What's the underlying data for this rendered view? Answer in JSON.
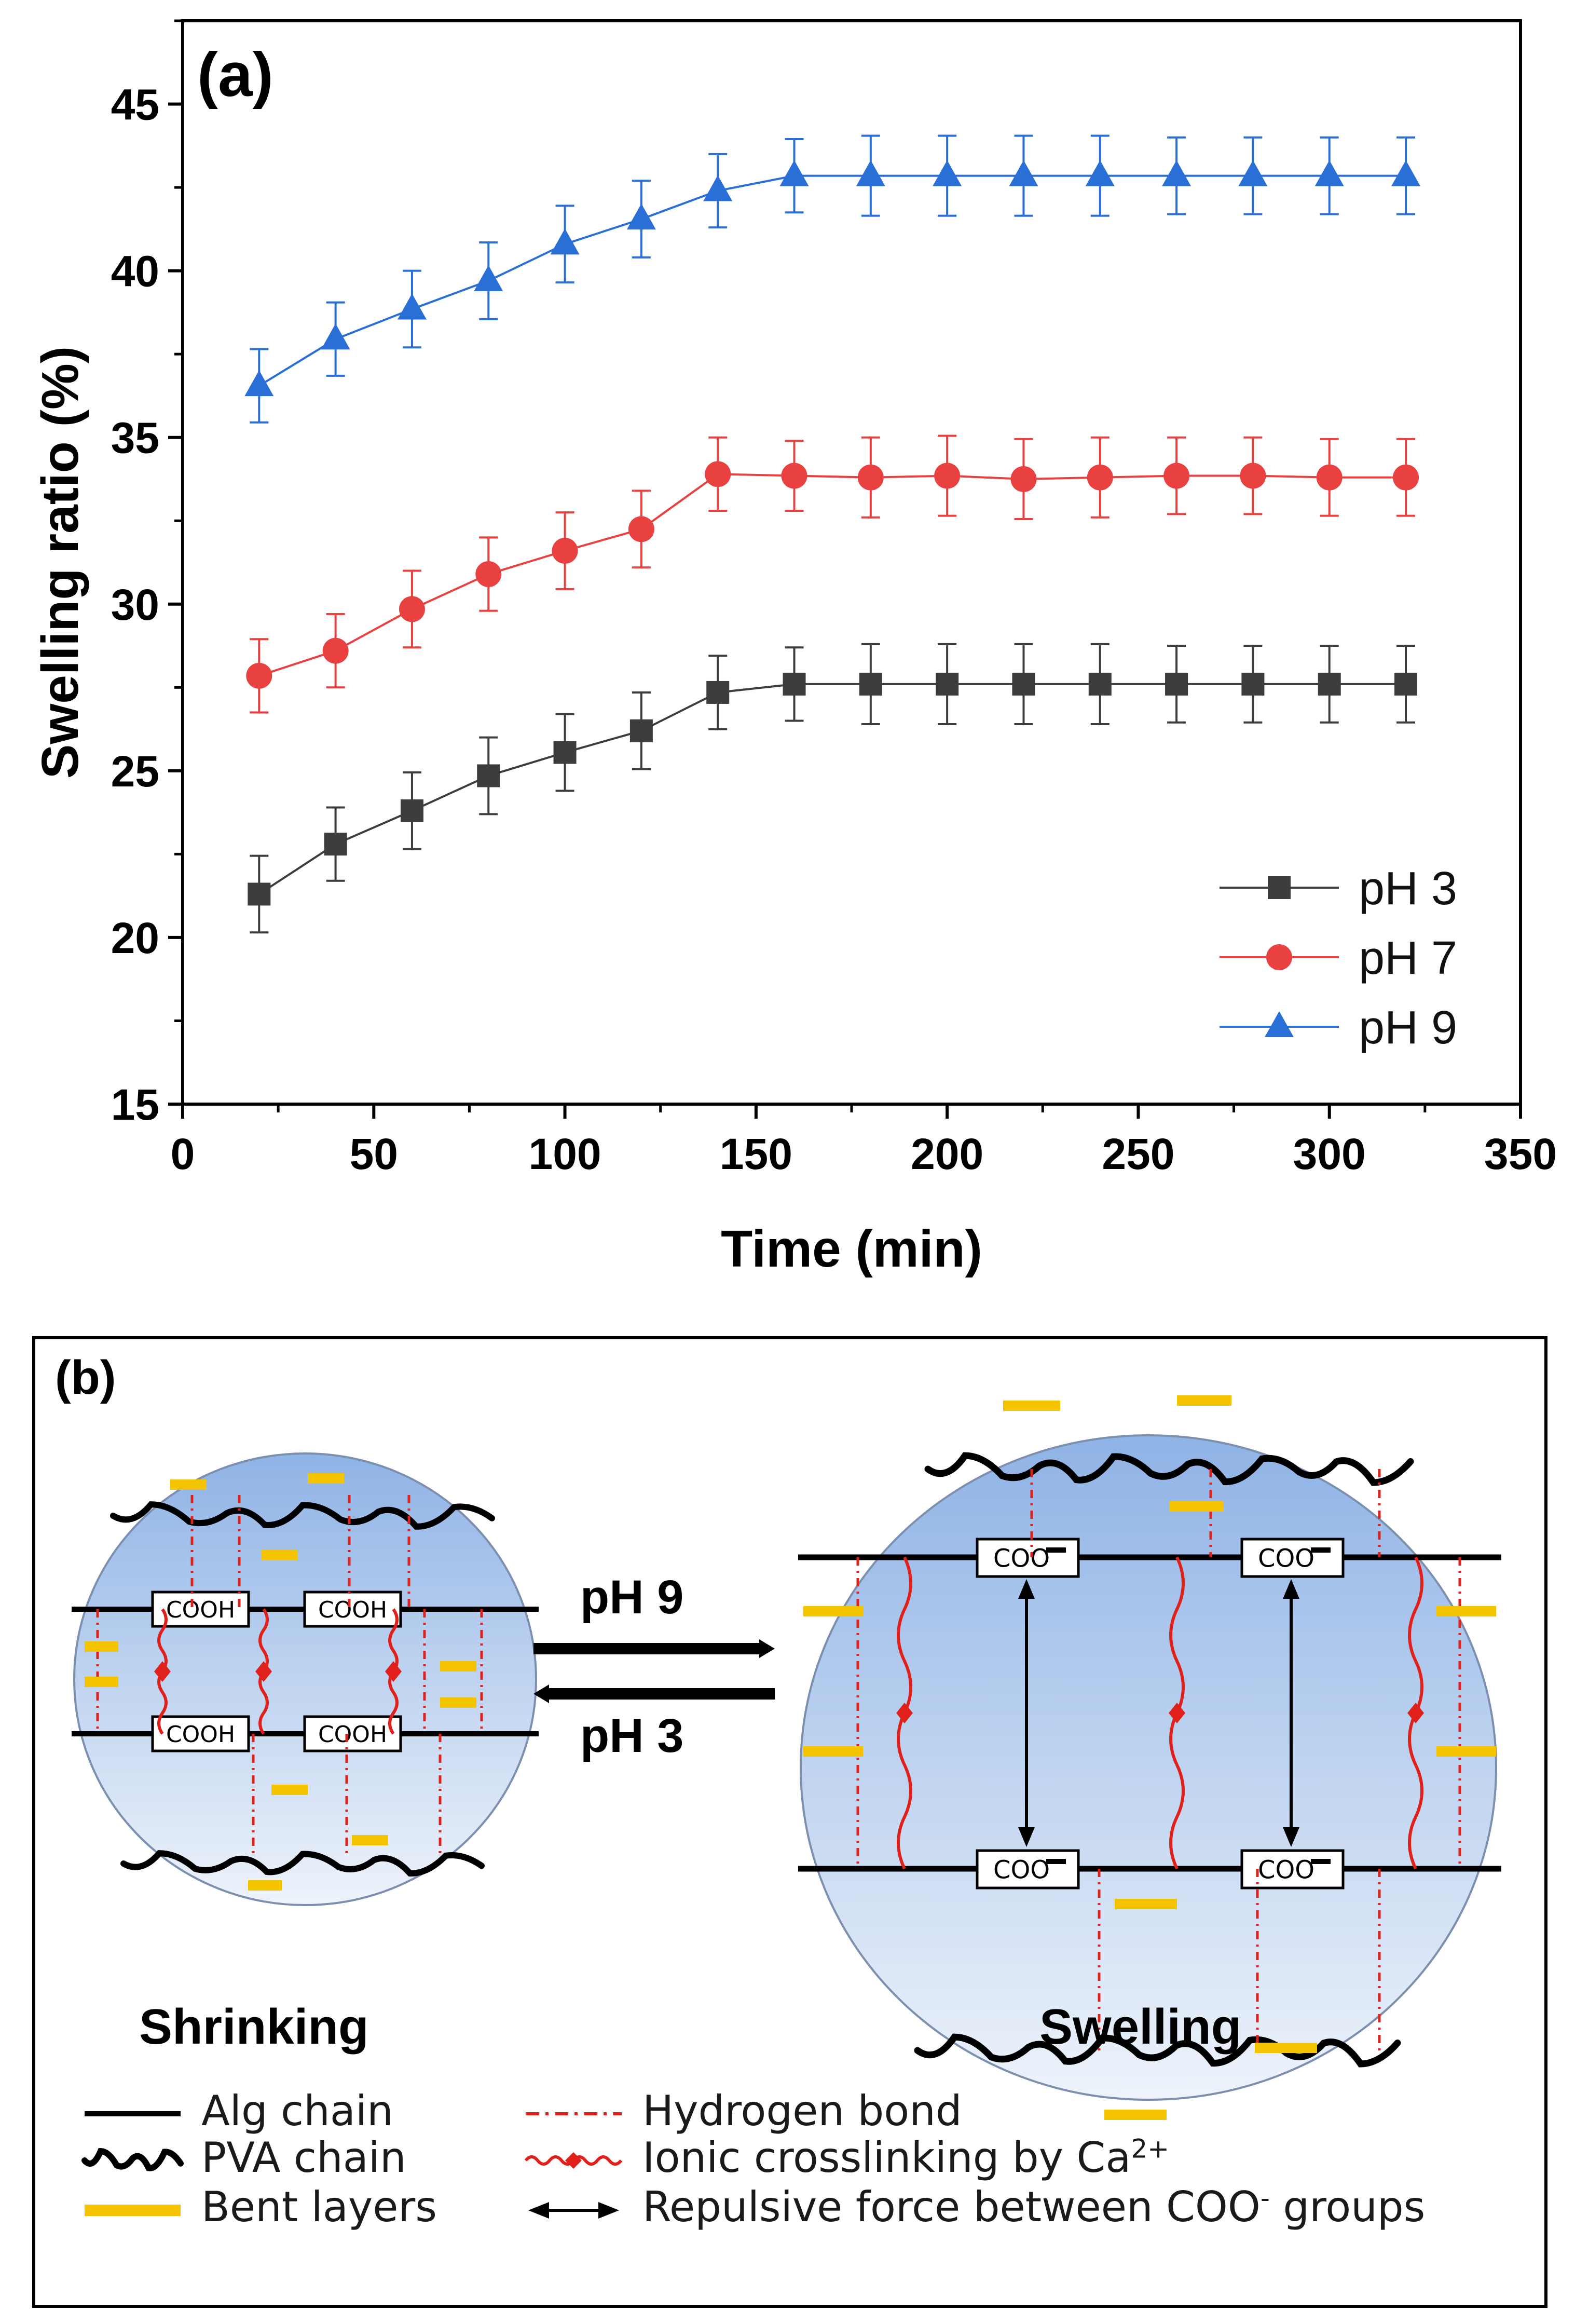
{
  "chart_data": {
    "type": "line",
    "panel_label": "(a)",
    "xlabel": "Time (min)",
    "ylabel": "Swelling ratio (%)",
    "xlim": [
      0,
      350
    ],
    "ylim": [
      15,
      47.5
    ],
    "xticks": [
      0,
      50,
      100,
      150,
      200,
      250,
      300,
      350
    ],
    "yticks": [
      15,
      20,
      25,
      30,
      35,
      40,
      45
    ],
    "legend_position": "lower-right",
    "x": [
      20,
      40,
      60,
      80,
      100,
      120,
      140,
      160,
      180,
      200,
      220,
      240,
      260,
      280,
      300,
      320
    ],
    "series": [
      {
        "name": "pH 3",
        "marker": "square",
        "color": "#3d3d3d",
        "values": [
          21.3,
          22.8,
          23.8,
          24.85,
          25.55,
          26.2,
          27.35,
          27.6,
          27.6,
          27.6,
          27.6,
          27.6,
          27.6,
          27.6,
          27.6,
          27.6
        ],
        "errors": [
          1.15,
          1.1,
          1.15,
          1.15,
          1.15,
          1.15,
          1.1,
          1.1,
          1.2,
          1.2,
          1.2,
          1.2,
          1.15,
          1.15,
          1.15,
          1.15
        ]
      },
      {
        "name": "pH 7",
        "marker": "circle",
        "color": "#e94040",
        "values": [
          27.85,
          28.6,
          29.85,
          30.9,
          31.6,
          32.25,
          33.9,
          33.85,
          33.8,
          33.85,
          33.75,
          33.8,
          33.85,
          33.85,
          33.8,
          33.8
        ],
        "errors": [
          1.1,
          1.1,
          1.15,
          1.1,
          1.15,
          1.15,
          1.1,
          1.05,
          1.2,
          1.2,
          1.2,
          1.2,
          1.15,
          1.15,
          1.15,
          1.15
        ]
      },
      {
        "name": "pH 9",
        "marker": "triangle",
        "color": "#2a6fd6",
        "values": [
          36.55,
          37.95,
          38.85,
          39.7,
          40.8,
          41.55,
          42.4,
          42.85,
          42.85,
          42.85,
          42.85,
          42.85,
          42.85,
          42.85,
          42.85,
          42.85
        ],
        "errors": [
          1.1,
          1.1,
          1.15,
          1.15,
          1.15,
          1.15,
          1.1,
          1.1,
          1.2,
          1.2,
          1.2,
          1.2,
          1.15,
          1.15,
          1.15,
          1.15
        ]
      }
    ]
  },
  "diagram": {
    "panel_label": "(b)",
    "forward_condition": "pH 9",
    "reverse_condition": "pH 3",
    "left_state": "Shrinking",
    "right_state": "Swelling",
    "cooh_label": "COOH",
    "coo_label": "COO",
    "legend": {
      "alg_chain": "Alg chain",
      "pva_chain": "PVA chain",
      "bent_layers": "Bent layers",
      "hydrogen_bond": "Hydrogen bond",
      "ionic_crosslinking": "Ionic crosslinking by Ca",
      "ionic_superscript": "2+",
      "repulsive_force_prefix": "Repulsive force between COO",
      "repulsive_force_superscript": "-",
      "repulsive_force_suffix": " groups"
    },
    "colors": {
      "gold": "#f5c400",
      "red": "#e0201a",
      "sphere_top": "#9bbde8",
      "sphere_bottom": "#eaf1fb"
    }
  }
}
